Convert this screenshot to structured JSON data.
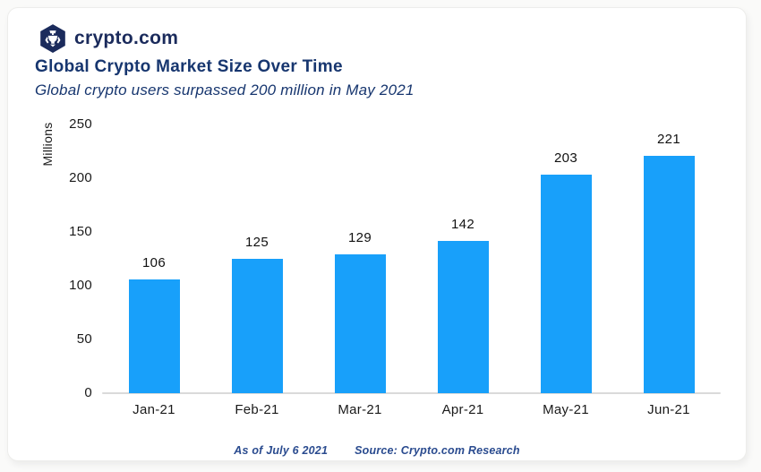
{
  "brand": {
    "logo_icon": "crypto-com-hexagon-logo",
    "logo_text": "crypto.com"
  },
  "header": {
    "title": "Global Crypto Market Size Over Time",
    "subtitle": "Global crypto users surpassed 200 million in May 2021"
  },
  "footer": {
    "as_of": "As of July 6 2021",
    "source": "Source: Crypto.com Research"
  },
  "colors": {
    "bar": "#18A0FA",
    "brand_navy": "#1B2B5C",
    "title_navy": "#17366F",
    "footer_blue": "#2A4B8F",
    "axis_line": "#DADADA",
    "tick_text": "#1A1A1A"
  },
  "chart_data": {
    "type": "bar",
    "categories": [
      "Jan-21",
      "Feb-21",
      "Mar-21",
      "Apr-21",
      "May-21",
      "Jun-21"
    ],
    "values": [
      106,
      125,
      129,
      142,
      203,
      221
    ],
    "title": "Global Crypto Market Size Over Time",
    "subtitle": "Global crypto users surpassed 200 million in May 2021",
    "xlabel": "",
    "ylabel": "Millions",
    "ylim": [
      0,
      250
    ],
    "yticks": [
      0,
      50,
      100,
      150,
      200,
      250
    ],
    "grid": false,
    "legend": false,
    "bar_labels_shown": true
  }
}
